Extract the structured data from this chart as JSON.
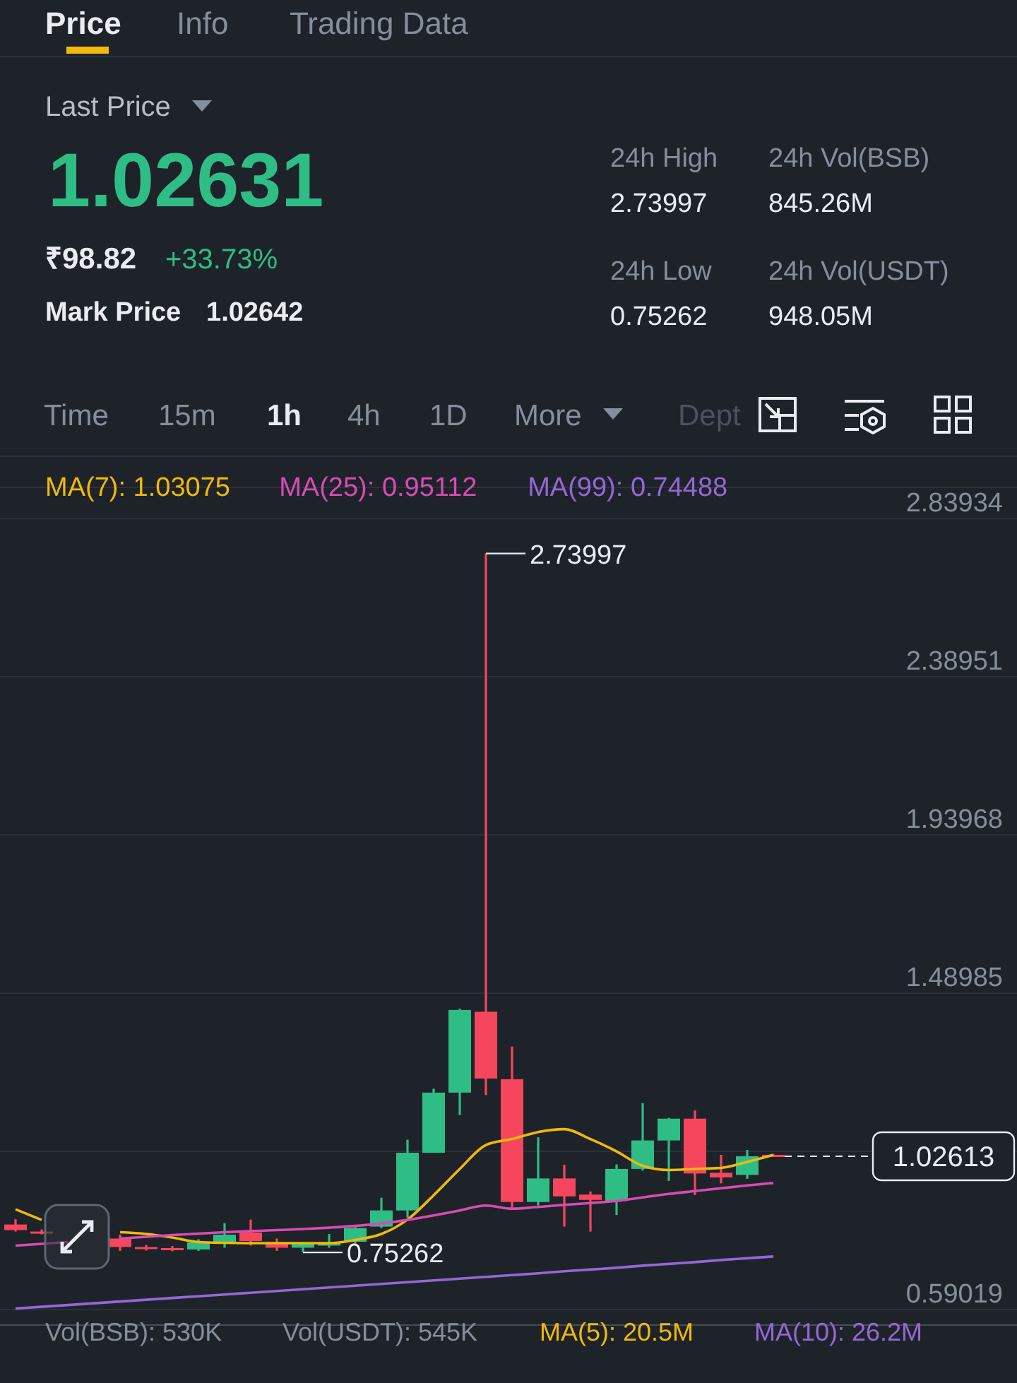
{
  "chart_data": {
    "type": "candlestick",
    "categories": [
      null,
      null,
      null,
      null,
      null,
      null,
      null,
      null,
      null,
      null,
      null,
      null,
      null,
      null,
      null,
      null,
      null,
      null,
      null,
      null,
      null,
      null,
      null,
      null,
      null,
      null,
      null,
      null,
      null,
      null
    ],
    "ohlc": [
      [
        0.832,
        0.847,
        0.812,
        0.816
      ],
      [
        0.812,
        0.818,
        0.804,
        0.808
      ],
      null,
      null,
      [
        0.792,
        0.803,
        0.757,
        0.768
      ],
      [
        0.768,
        0.774,
        0.758,
        0.763
      ],
      [
        0.765,
        0.771,
        0.756,
        0.759
      ],
      [
        0.761,
        0.79,
        0.757,
        0.781
      ],
      [
        0.783,
        0.836,
        0.766,
        0.803
      ],
      [
        0.809,
        0.846,
        0.772,
        0.785
      ],
      [
        0.782,
        0.792,
        0.757,
        0.766
      ],
      [
        0.766,
        0.782,
        0.75262,
        0.779
      ],
      [
        0.772,
        0.805,
        0.766,
        0.781
      ],
      [
        0.783,
        0.827,
        0.778,
        0.822
      ],
      [
        0.826,
        0.908,
        0.822,
        0.872
      ],
      [
        0.872,
        1.073,
        0.852,
        1.036
      ],
      [
        1.036,
        1.218,
        1.036,
        1.207
      ],
      [
        1.207,
        1.446,
        1.143,
        1.442
      ],
      [
        1.437,
        2.73997,
        1.2,
        1.247
      ],
      [
        1.245,
        1.338,
        0.875,
        0.896
      ],
      [
        0.896,
        1.08,
        0.886,
        0.963
      ],
      [
        0.963,
        1.002,
        0.826,
        0.912
      ],
      [
        0.917,
        0.926,
        0.812,
        0.902
      ],
      [
        0.899,
        1.003,
        0.859,
        0.99
      ],
      [
        0.99,
        1.177,
        0.985,
        1.071
      ],
      [
        1.071,
        1.135,
        0.956,
        1.133
      ],
      [
        1.133,
        1.156,
        0.916,
        0.977
      ],
      [
        0.979,
        1.03,
        0.949,
        0.966
      ],
      [
        0.973,
        1.044,
        0.962,
        1.026
      ],
      [
        1.03,
        1.032,
        1.024,
        1.02613
      ]
    ],
    "colors": [
      "#f6465d",
      "#f6465d",
      null,
      null,
      "#f6465d",
      "#f6465d",
      "#f6465d",
      "#2ebd85",
      "#2ebd85",
      "#f6465d",
      "#f6465d",
      "#2ebd85",
      "#2ebd85",
      "#2ebd85",
      "#2ebd85",
      "#2ebd85",
      "#2ebd85",
      "#2ebd85",
      "#f6465d",
      "#f6465d",
      "#2ebd85",
      "#f6465d",
      "#f6465d",
      "#2ebd85",
      "#2ebd85",
      "#2ebd85",
      "#f6465d",
      "#f6465d",
      "#2ebd85",
      "#f6465d"
    ],
    "series": [
      {
        "type": "line",
        "name": "MA(7): 1.03075",
        "color": "#f0b90b",
        "values": [
          0.875,
          0.845,
          null,
          null,
          0.81,
          0.805,
          0.795,
          0.782,
          0.78,
          0.779,
          0.779,
          0.779,
          0.779,
          0.788,
          0.805,
          0.846,
          0.915,
          0.99,
          1.058,
          1.075,
          1.095,
          1.103,
          1.075,
          1.04,
          0.999,
          0.987,
          0.99,
          0.993,
          1.01,
          1.03
        ]
      },
      {
        "type": "line",
        "name": "MA(25): 0.95112",
        "color": "#d84bb5",
        "values": [
          0.772,
          0.777,
          0.782,
          null,
          0.792,
          0.797,
          0.802,
          0.806,
          0.81,
          0.813,
          0.816,
          0.819,
          0.823,
          0.828,
          0.835,
          0.845,
          0.858,
          0.872,
          0.886,
          0.877,
          0.882,
          0.888,
          0.893,
          0.899,
          0.909,
          0.919,
          0.927,
          0.935,
          0.943,
          0.95
        ]
      },
      {
        "type": "line",
        "name": "MA(99): 0.74488",
        "color": "#9567d6",
        "values": [
          0.593,
          0.598,
          0.603,
          0.608,
          0.613,
          0.618,
          0.623,
          0.628,
          0.633,
          0.638,
          0.643,
          0.648,
          0.653,
          0.658,
          0.663,
          0.668,
          0.673,
          0.678,
          0.683,
          0.688,
          0.693,
          0.699,
          0.704,
          0.709,
          0.715,
          0.72,
          0.725,
          0.731,
          0.736,
          0.741
        ]
      }
    ],
    "ylim": [
      0.546,
      2.928
    ],
    "yticks": [
      0.59019,
      {
        "value": 1.04003,
        "label": null
      },
      1.48985,
      1.93968,
      2.38951,
      2.83934
    ],
    "grid": "y",
    "legend": "top",
    "ref_lines": [
      {
        "axis": "y",
        "value": 1.02613,
        "label": "1.02613",
        "line_style": "dashed"
      }
    ],
    "annotations": [
      "Price",
      "Info",
      "Trading Data",
      "Last Price",
      "1.02631",
      "₹98.82",
      "+33.73%",
      "Mark Price",
      "1.02642",
      "24h High",
      "2.73997",
      "24h Low",
      "0.75262",
      "24h Vol(BSB)",
      "845.26M",
      "24h Vol(USDT)",
      "948.05M",
      "Time",
      "15m",
      "1h",
      "4h",
      "1D",
      "More",
      "Dept",
      "Vol(BSB): 530K",
      "Vol(USDT): 545K",
      "MA(5): 20.5M",
      "MA(10): 26.2M",
      "2.73997",
      "0.75262"
    ]
  }
}
